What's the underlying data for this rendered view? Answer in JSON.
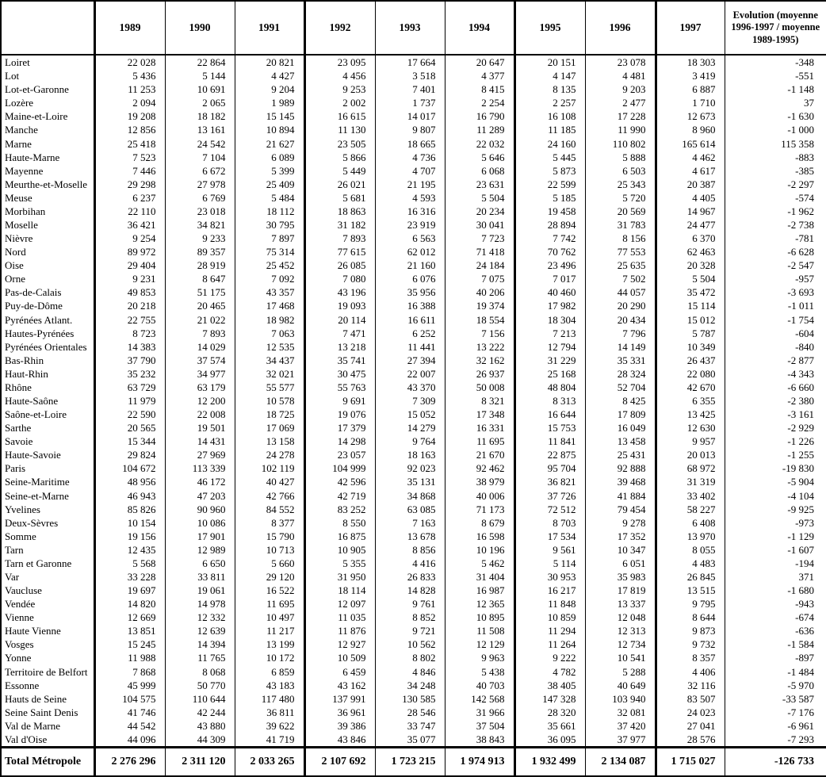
{
  "table": {
    "corner_label": "",
    "columns": [
      "1989",
      "1990",
      "1991",
      "1992",
      "1993",
      "1994",
      "1995",
      "1996",
      "1997",
      "Evolution (moyenne 1996-1997 / moyenne 1989-1995)"
    ],
    "thick_left_value_indices": [
      0,
      3,
      6,
      8
    ],
    "rows": [
      {
        "label": "Loiret",
        "values": [
          "22 028",
          "22 864",
          "20 821",
          "23 095",
          "17 664",
          "20 647",
          "20 151",
          "23 078",
          "18 303",
          "-348"
        ]
      },
      {
        "label": "Lot",
        "values": [
          "5 436",
          "5 144",
          "4 427",
          "4 456",
          "3 518",
          "4 377",
          "4 147",
          "4 481",
          "3 419",
          "-551"
        ]
      },
      {
        "label": "Lot-et-Garonne",
        "values": [
          "11 253",
          "10 691",
          "9 204",
          "9 253",
          "7 401",
          "8 415",
          "8 135",
          "9 203",
          "6 887",
          "-1 148"
        ]
      },
      {
        "label": "Lozère",
        "values": [
          "2 094",
          "2 065",
          "1 989",
          "2 002",
          "1 737",
          "2 254",
          "2 257",
          "2 477",
          "1 710",
          "37"
        ]
      },
      {
        "label": "Maine-et-Loire",
        "values": [
          "19 208",
          "18 182",
          "15 145",
          "16 615",
          "14 017",
          "16 790",
          "16 108",
          "17 228",
          "12 673",
          "-1 630"
        ]
      },
      {
        "label": "Manche",
        "values": [
          "12 856",
          "13 161",
          "10 894",
          "11 130",
          "9 807",
          "11 289",
          "11 185",
          "11 990",
          "8 960",
          "-1 000"
        ]
      },
      {
        "label": "Marne",
        "values": [
          "25 418",
          "24 542",
          "21 627",
          "23 505",
          "18 665",
          "22 032",
          "24 160",
          "110 802",
          "165 614",
          "115 358"
        ]
      },
      {
        "label": "Haute-Marne",
        "values": [
          "7 523",
          "7 104",
          "6 089",
          "5 866",
          "4 736",
          "5 646",
          "5 445",
          "5 888",
          "4 462",
          "-883"
        ]
      },
      {
        "label": "Mayenne",
        "values": [
          "7 446",
          "6 672",
          "5 399",
          "5 449",
          "4 707",
          "6 068",
          "5 873",
          "6 503",
          "4 617",
          "-385"
        ]
      },
      {
        "label": "Meurthe-et-Moselle",
        "values": [
          "29 298",
          "27 978",
          "25 409",
          "26 021",
          "21 195",
          "23 631",
          "22 599",
          "25 343",
          "20 387",
          "-2 297"
        ]
      },
      {
        "label": "Meuse",
        "values": [
          "6 237",
          "6 769",
          "5 484",
          "5 681",
          "4 593",
          "5 504",
          "5 185",
          "5 720",
          "4 405",
          "-574"
        ]
      },
      {
        "label": "Morbihan",
        "values": [
          "22 110",
          "23 018",
          "18 112",
          "18 863",
          "16 316",
          "20 234",
          "19 458",
          "20 569",
          "14 967",
          "-1 962"
        ]
      },
      {
        "label": "Moselle",
        "values": [
          "36 421",
          "34 821",
          "30 795",
          "31 182",
          "23 919",
          "30 041",
          "28 894",
          "31 783",
          "24 477",
          "-2 738"
        ]
      },
      {
        "label": "Nièvre",
        "values": [
          "9 254",
          "9 233",
          "7 897",
          "7 893",
          "6 563",
          "7 723",
          "7 742",
          "8 156",
          "6 370",
          "-781"
        ]
      },
      {
        "label": "Nord",
        "values": [
          "89 972",
          "89 357",
          "75 314",
          "77 615",
          "62 012",
          "71 418",
          "70 762",
          "77 553",
          "62 463",
          "-6 628"
        ]
      },
      {
        "label": "Oise",
        "values": [
          "29 404",
          "28 919",
          "25 452",
          "26 085",
          "21 160",
          "24 184",
          "23 496",
          "25 635",
          "20 328",
          "-2 547"
        ]
      },
      {
        "label": "Orne",
        "values": [
          "9 231",
          "8 647",
          "7 092",
          "7 080",
          "6 076",
          "7 075",
          "7 017",
          "7 502",
          "5 504",
          "-957"
        ]
      },
      {
        "label": "Pas-de-Calais",
        "values": [
          "49 853",
          "51 175",
          "43 357",
          "43 196",
          "35 956",
          "40 206",
          "40 460",
          "44 057",
          "35 472",
          "-3 693"
        ]
      },
      {
        "label": "Puy-de-Dôme",
        "values": [
          "20 218",
          "20 465",
          "17 468",
          "19 093",
          "16 388",
          "19 374",
          "17 982",
          "20 290",
          "15 114",
          "-1 011"
        ]
      },
      {
        "label": "Pyrénées Atlant.",
        "values": [
          "22 755",
          "21 022",
          "18 982",
          "20 114",
          "16 611",
          "18 554",
          "18 304",
          "20 434",
          "15 012",
          "-1 754"
        ]
      },
      {
        "label": "Hautes-Pyrénées",
        "values": [
          "8 723",
          "7 893",
          "7 063",
          "7 471",
          "6 252",
          "7 156",
          "7 213",
          "7 796",
          "5 787",
          "-604"
        ]
      },
      {
        "label": "Pyrénées Orientales",
        "values": [
          "14 383",
          "14 029",
          "12 535",
          "13 218",
          "11 441",
          "13 222",
          "12 794",
          "14 149",
          "10 349",
          "-840"
        ]
      },
      {
        "label": "Bas-Rhin",
        "values": [
          "37 790",
          "37 574",
          "34 437",
          "35 741",
          "27 394",
          "32 162",
          "31 229",
          "35 331",
          "26 437",
          "-2 877"
        ]
      },
      {
        "label": "Haut-Rhin",
        "values": [
          "35 232",
          "34 977",
          "32 021",
          "30 475",
          "22 007",
          "26 937",
          "25 168",
          "28 324",
          "22 080",
          "-4 343"
        ]
      },
      {
        "label": "Rhône",
        "values": [
          "63 729",
          "63 179",
          "55 577",
          "55 763",
          "43 370",
          "50 008",
          "48 804",
          "52 704",
          "42 670",
          "-6 660"
        ]
      },
      {
        "label": "Haute-Saône",
        "values": [
          "11 979",
          "12 200",
          "10 578",
          "9 691",
          "7 309",
          "8 321",
          "8 313",
          "8 425",
          "6 355",
          "-2 380"
        ]
      },
      {
        "label": "Saône-et-Loire",
        "values": [
          "22 590",
          "22 008",
          "18 725",
          "19 076",
          "15 052",
          "17 348",
          "16 644",
          "17 809",
          "13 425",
          "-3 161"
        ]
      },
      {
        "label": "Sarthe",
        "values": [
          "20 565",
          "19 501",
          "17 069",
          "17 379",
          "14 279",
          "16 331",
          "15 753",
          "16 049",
          "12 630",
          "-2 929"
        ]
      },
      {
        "label": "Savoie",
        "values": [
          "15 344",
          "14 431",
          "13 158",
          "14 298",
          "9 764",
          "11 695",
          "11 841",
          "13 458",
          "9 957",
          "-1 226"
        ]
      },
      {
        "label": "Haute-Savoie",
        "values": [
          "29 824",
          "27 969",
          "24 278",
          "23 057",
          "18 163",
          "21 670",
          "22 875",
          "25 431",
          "20 013",
          "-1 255"
        ]
      },
      {
        "label": "Paris",
        "values": [
          "104 672",
          "113 339",
          "102 119",
          "104 999",
          "92 023",
          "92 462",
          "95 704",
          "92 888",
          "68 972",
          "-19 830"
        ]
      },
      {
        "label": "Seine-Maritime",
        "values": [
          "48 956",
          "46 172",
          "40 427",
          "42 596",
          "35 131",
          "38 979",
          "36 821",
          "39 468",
          "31 319",
          "-5 904"
        ]
      },
      {
        "label": "Seine-et-Marne",
        "values": [
          "46 943",
          "47 203",
          "42 766",
          "42 719",
          "34 868",
          "40 006",
          "37 726",
          "41 884",
          "33 402",
          "-4 104"
        ]
      },
      {
        "label": "Yvelines",
        "values": [
          "85 826",
          "90 960",
          "84 552",
          "83 252",
          "63 085",
          "71 173",
          "72 512",
          "79 454",
          "58 227",
          "-9 925"
        ]
      },
      {
        "label": "Deux-Sèvres",
        "values": [
          "10 154",
          "10 086",
          "8 377",
          "8 550",
          "7 163",
          "8 679",
          "8 703",
          "9 278",
          "6 408",
          "-973"
        ]
      },
      {
        "label": "Somme",
        "values": [
          "19 156",
          "17 901",
          "15 790",
          "16 875",
          "13 678",
          "16 598",
          "17 534",
          "17 352",
          "13 970",
          "-1 129"
        ]
      },
      {
        "label": "Tarn",
        "values": [
          "12 435",
          "12 989",
          "10 713",
          "10 905",
          "8 856",
          "10 196",
          "9 561",
          "10 347",
          "8 055",
          "-1 607"
        ]
      },
      {
        "label": "Tarn et Garonne",
        "values": [
          "5 568",
          "6 650",
          "5 660",
          "5 355",
          "4 416",
          "5 462",
          "5 114",
          "6 051",
          "4 483",
          "-194"
        ]
      },
      {
        "label": "Var",
        "values": [
          "33 228",
          "33 811",
          "29 120",
          "31 950",
          "26 833",
          "31 404",
          "30 953",
          "35 983",
          "26 845",
          "371"
        ]
      },
      {
        "label": "Vaucluse",
        "values": [
          "19 697",
          "19 061",
          "16 522",
          "18 114",
          "14 828",
          "16 987",
          "16 217",
          "17 819",
          "13 515",
          "-1 680"
        ]
      },
      {
        "label": "Vendée",
        "values": [
          "14 820",
          "14 978",
          "11 695",
          "12 097",
          "9 761",
          "12 365",
          "11 848",
          "13 337",
          "9 795",
          "-943"
        ]
      },
      {
        "label": "Vienne",
        "values": [
          "12 669",
          "12 332",
          "10 497",
          "11 035",
          "8 852",
          "10 895",
          "10 859",
          "12 048",
          "8 644",
          "-674"
        ]
      },
      {
        "label": "Haute Vienne",
        "values": [
          "13 851",
          "12 639",
          "11 217",
          "11 876",
          "9 721",
          "11 508",
          "11 294",
          "12 313",
          "9 873",
          "-636"
        ]
      },
      {
        "label": "Vosges",
        "values": [
          "15 245",
          "14 394",
          "13 199",
          "12 927",
          "10 562",
          "12 129",
          "11 264",
          "12 734",
          "9 732",
          "-1 584"
        ]
      },
      {
        "label": "Yonne",
        "values": [
          "11 988",
          "11 765",
          "10 172",
          "10 509",
          "8 802",
          "9 963",
          "9 222",
          "10 541",
          "8 357",
          "-897"
        ]
      },
      {
        "label": "Territoire de Belfort",
        "values": [
          "7 868",
          "8 068",
          "6 859",
          "6 459",
          "4 846",
          "5 438",
          "4 782",
          "5 288",
          "4 406",
          "-1 484"
        ]
      },
      {
        "label": "Essonne",
        "values": [
          "45 999",
          "50 770",
          "43 183",
          "43 162",
          "34 248",
          "40 703",
          "38 405",
          "40 649",
          "32 116",
          "-5 970"
        ]
      },
      {
        "label": "Hauts de Seine",
        "values": [
          "104 575",
          "110 644",
          "117 480",
          "137 991",
          "130 585",
          "142 568",
          "147 328",
          "103 940",
          "83 507",
          "-33 587"
        ]
      },
      {
        "label": "Seine Saint Denis",
        "values": [
          "41 746",
          "42 244",
          "36 811",
          "36 961",
          "28 546",
          "31 966",
          "28 320",
          "32 081",
          "24 023",
          "-7 176"
        ]
      },
      {
        "label": "Val de Marne",
        "values": [
          "44 542",
          "43 880",
          "39 622",
          "39 386",
          "33 747",
          "37 504",
          "35 661",
          "37 420",
          "27 041",
          "-6 961"
        ]
      },
      {
        "label": "Val d'Oise",
        "values": [
          "44 096",
          "44 309",
          "41 719",
          "43 846",
          "35 077",
          "38 843",
          "36 095",
          "37 977",
          "28 576",
          "-7 293"
        ]
      }
    ],
    "total": {
      "label": "Total Métropole",
      "values": [
        "2 276 296",
        "2 311 120",
        "2 033 265",
        "2 107 692",
        "1 723 215",
        "1 974 913",
        "1 932 499",
        "2 134 087",
        "1 715 027",
        "-126 733"
      ]
    }
  }
}
